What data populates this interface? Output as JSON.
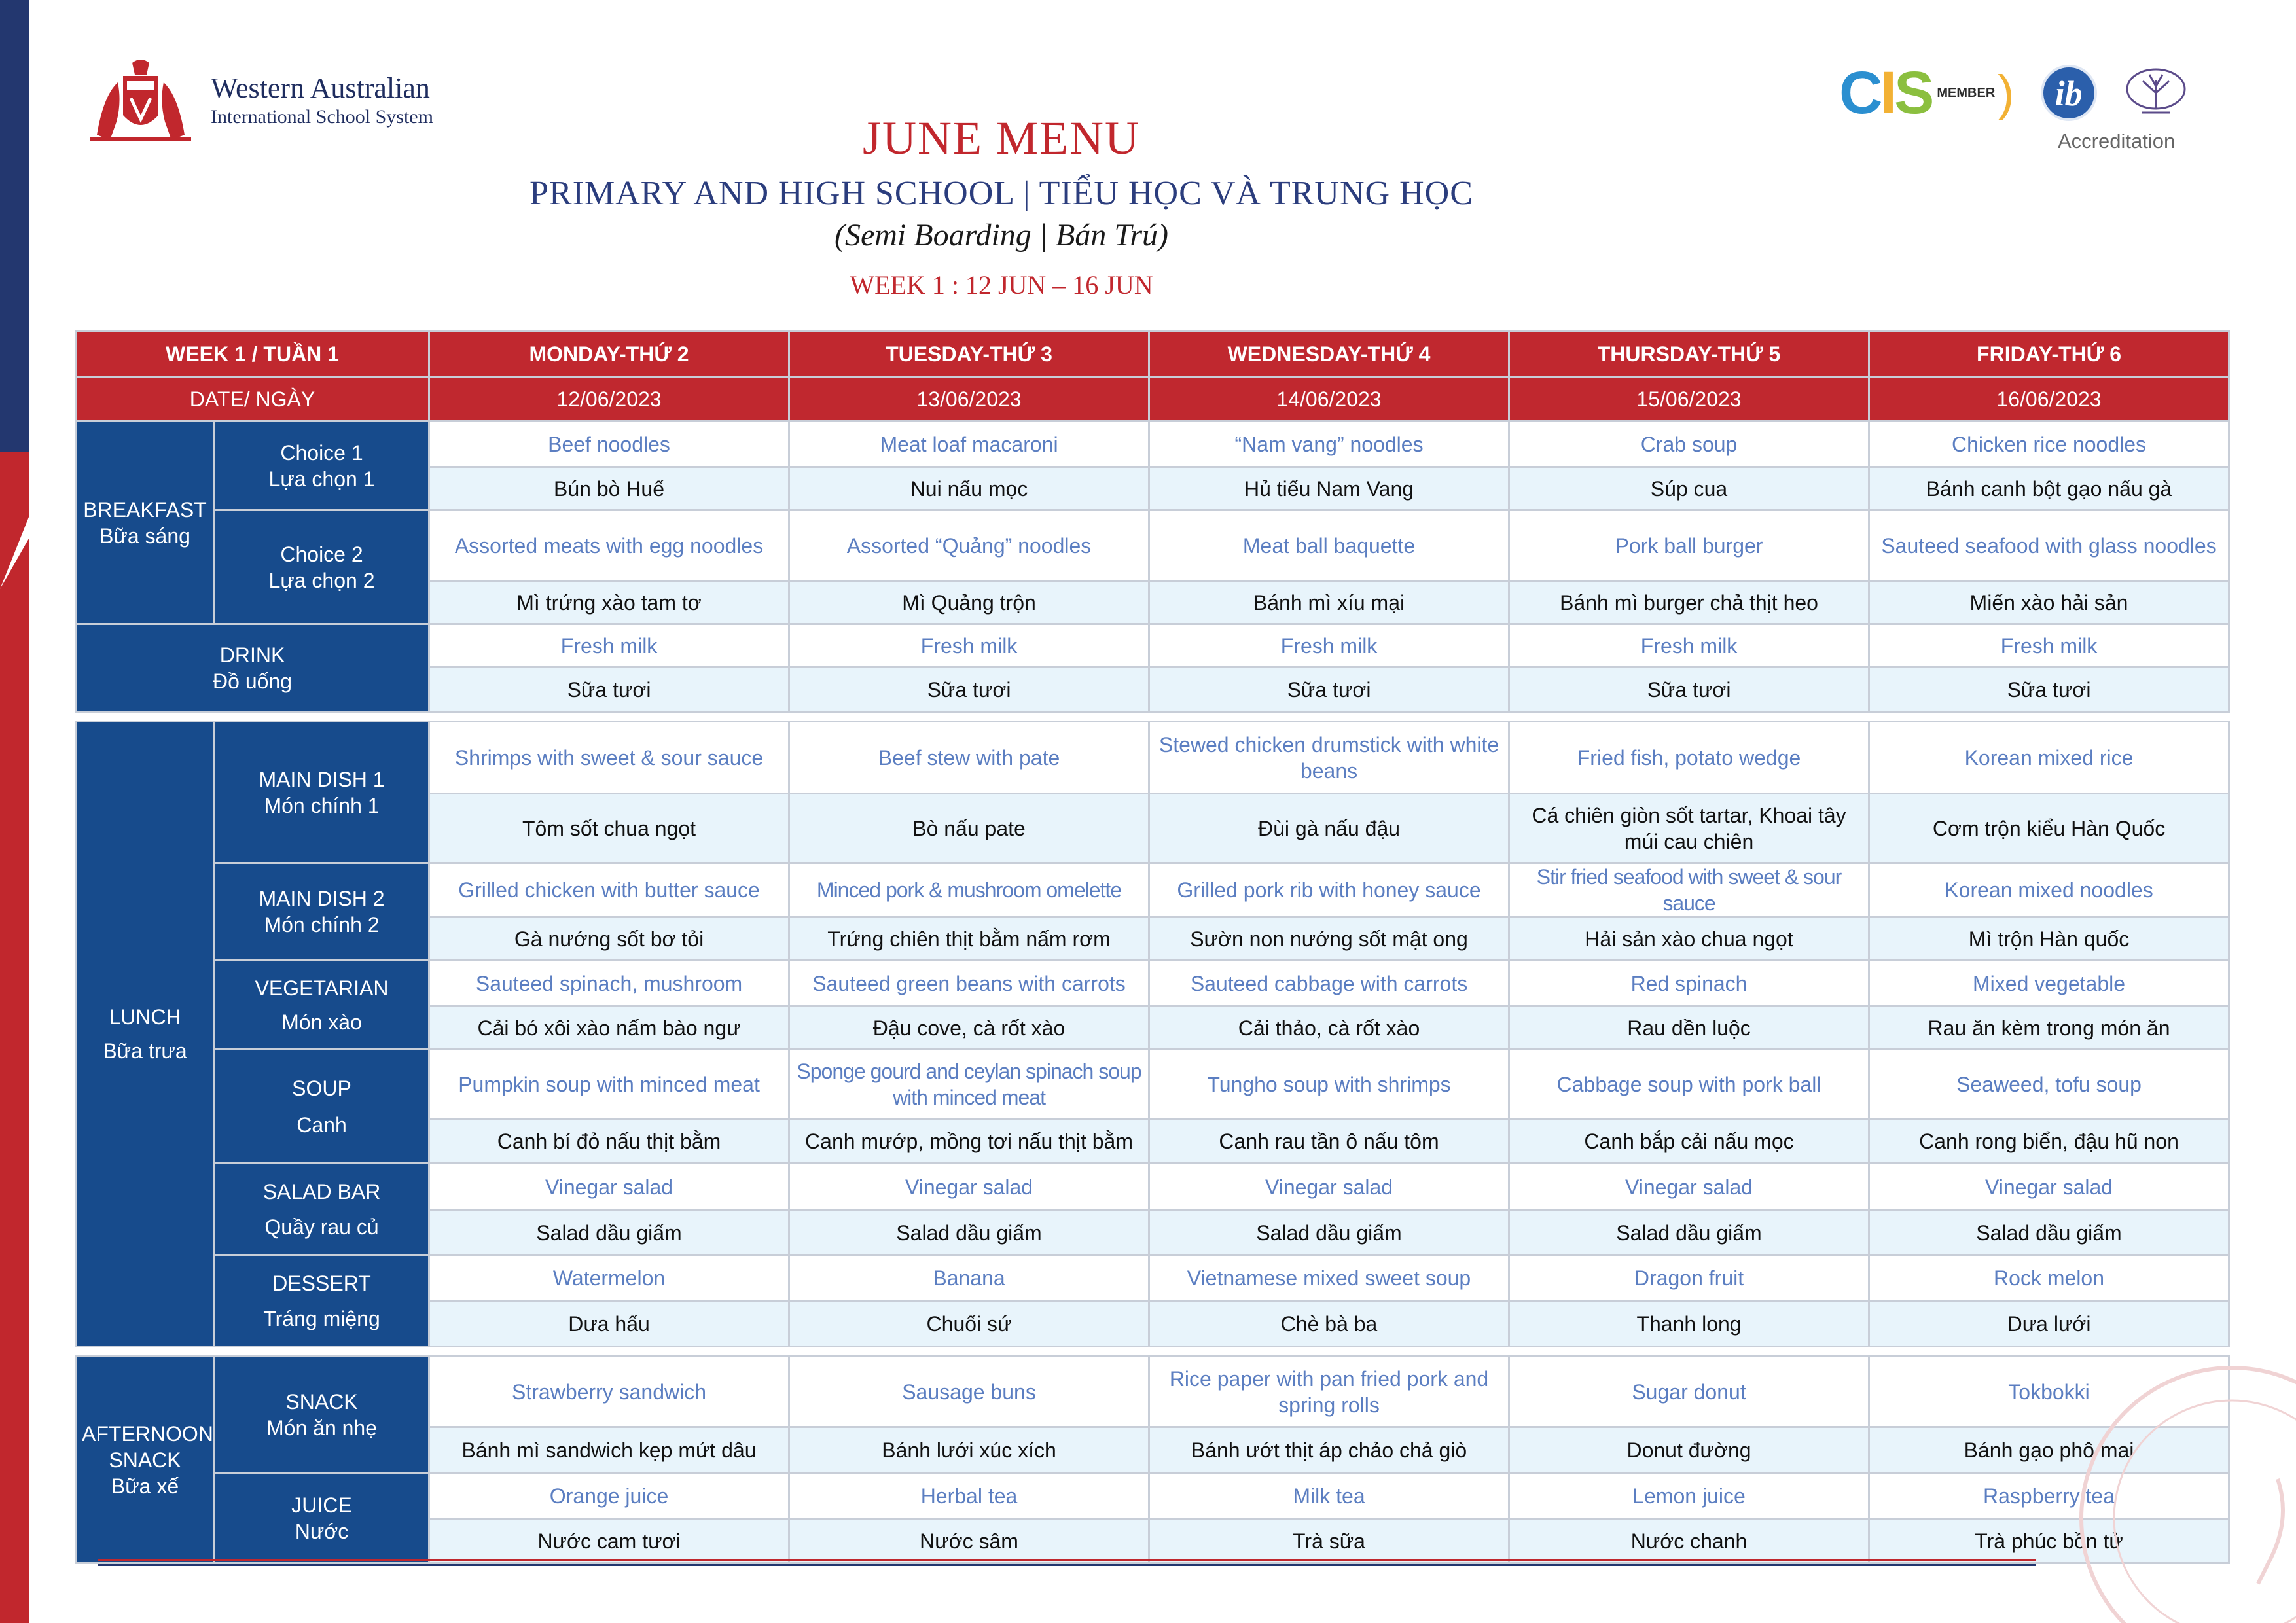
{
  "header": {
    "school_line1": "Western Australian",
    "school_line2": "International School System",
    "title": "JUNE MENU",
    "subtitle": "PRIMARY AND HIGH SCHOOL | TIỂU HỌC VÀ TRUNG HỌC",
    "subtitle2": "(Semi Boarding | Bán Trú)",
    "week_range": "WEEK 1 : 12 JUN – 16 JUN",
    "accreditation_label": "Accreditation",
    "cis_label": "MEMBER"
  },
  "table": {
    "corner": "WEEK 1 / TUẦN 1",
    "date_label": "DATE/ NGÀY",
    "days": [
      "MONDAY-THỨ 2",
      "TUESDAY-THỨ 3",
      "WEDNESDAY-THỨ 4",
      "THURSDAY-THỨ 5",
      "FRIDAY-THỨ 6"
    ],
    "dates": [
      "12/06/2023",
      "13/06/2023",
      "14/06/2023",
      "15/06/2023",
      "16/06/2023"
    ]
  },
  "categories": {
    "breakfast": {
      "en": "BREAKFAST",
      "vn": "Bữa sáng"
    },
    "drink": {
      "en": "DRINK",
      "vn": "Đồ uống"
    },
    "lunch": {
      "en": "LUNCH",
      "vn": "Bữa trưa"
    },
    "snack": {
      "en": "AFTERNOON SNACK",
      "vn": "Bữa xế"
    }
  },
  "rows": {
    "choice1": {
      "en": "Choice 1",
      "vn": "Lựa chọn 1",
      "items_en": [
        "Beef noodles",
        "Meat loaf macaroni",
        "“Nam vang” noodles",
        "Crab soup",
        "Chicken rice noodles"
      ],
      "items_vn": [
        "Bún bò Huế",
        "Nui nấu mọc",
        "Hủ tiếu Nam Vang",
        "Súp cua",
        "Bánh canh bột gạo nấu gà"
      ]
    },
    "choice2": {
      "en": "Choice 2",
      "vn": "Lựa chọn 2",
      "items_en": [
        "Assorted meats with egg noodles",
        "Assorted “Quảng” noodles",
        "Meat ball baquette",
        "Pork ball burger",
        "Sauteed seafood with glass noodles"
      ],
      "items_vn": [
        "Mì trứng xào tam tơ",
        "Mì Quảng trộn",
        "Bánh mì xíu mại",
        "Bánh mì burger chả thịt heo",
        "Miến xào hải sản"
      ]
    },
    "drink": {
      "items_en": [
        "Fresh milk",
        "Fresh milk",
        "Fresh milk",
        "Fresh milk",
        "Fresh milk"
      ],
      "items_vn": [
        "Sữa tươi",
        "Sữa tươi",
        "Sữa tươi",
        "Sữa tươi",
        "Sữa tươi"
      ]
    },
    "main1": {
      "en": "MAIN DISH 1",
      "vn": "Món chính 1",
      "items_en": [
        "Shrimps with sweet & sour sauce",
        "Beef stew with pate",
        "Stewed chicken drumstick with white beans",
        "Fried fish, potato wedge",
        "Korean mixed rice"
      ],
      "items_vn": [
        "Tôm sốt chua ngọt",
        "Bò nấu pate",
        "Đùi gà nấu đậu",
        "Cá chiên giòn sốt tartar, Khoai tây múi cau chiên",
        "Cơm trộn kiểu Hàn Quốc"
      ]
    },
    "main2": {
      "en": "MAIN DISH 2",
      "vn": "Món chính 2",
      "items_en": [
        "Grilled chicken with butter sauce",
        "Minced pork & mushroom omelette",
        "Grilled pork rib with honey sauce",
        "Stir fried seafood with sweet & sour sauce",
        "Korean mixed noodles"
      ],
      "items_vn": [
        "Gà nướng sốt bơ tỏi",
        "Trứng chiên thịt bằm nấm rơm",
        "Sườn non nướng sốt mật ong",
        "Hải sản xào chua ngọt",
        "Mì trộn Hàn quốc"
      ]
    },
    "veg": {
      "en": "VEGETARIAN",
      "vn": "Món xào",
      "items_en": [
        "Sauteed spinach, mushroom",
        "Sauteed green beans with carrots",
        "Sauteed cabbage with carrots",
        "Red spinach",
        "Mixed vegetable"
      ],
      "items_vn": [
        "Cải bó xôi xào nấm bào ngư",
        "Đậu cove, cà rốt xào",
        "Cải thảo, cà rốt xào",
        "Rau dền luộc",
        "Rau ăn kèm trong món ăn"
      ]
    },
    "soup": {
      "en": "SOUP",
      "vn": "Canh",
      "items_en": [
        "Pumpkin soup with minced meat",
        "Sponge gourd and ceylan spinach soup with minced meat",
        "Tungho soup with shrimps",
        "Cabbage soup with pork ball",
        "Seaweed, tofu soup"
      ],
      "items_vn": [
        "Canh bí đỏ nấu thịt bằm",
        "Canh mướp, mồng tơi nấu thịt bằm",
        "Canh rau tần ô nấu tôm",
        "Canh bắp cải nấu mọc",
        "Canh rong biển, đậu hũ non"
      ]
    },
    "salad": {
      "en": "SALAD BAR",
      "vn": "Quầy rau củ",
      "items_en": [
        "Vinegar salad",
        "Vinegar salad",
        "Vinegar salad",
        "Vinegar salad",
        "Vinegar salad"
      ],
      "items_vn": [
        "Salad dầu giấm",
        "Salad dầu giấm",
        "Salad dầu giấm",
        "Salad dầu giấm",
        "Salad dầu giấm"
      ]
    },
    "dessert": {
      "en": "DESSERT",
      "vn": "Tráng miệng",
      "items_en": [
        "Watermelon",
        "Banana",
        "Vietnamese mixed sweet soup",
        "Dragon fruit",
        "Rock melon"
      ],
      "items_vn": [
        "Dưa hấu",
        "Chuối sứ",
        "Chè bà ba",
        "Thanh long",
        "Dưa lưới"
      ]
    },
    "snack": {
      "en": "SNACK",
      "vn": "Món ăn nhẹ",
      "items_en": [
        "Strawberry sandwich",
        "Sausage buns",
        "Rice paper with pan fried pork and spring rolls",
        "Sugar donut",
        "Tokbokki"
      ],
      "items_vn": [
        "Bánh mì sandwich kẹp mứt dâu",
        "Bánh lưới xúc xích",
        "Bánh ướt thịt áp chảo chả giò",
        "Donut đường",
        "Bánh gạo phô mai"
      ]
    },
    "juice": {
      "en": "JUICE",
      "vn": "Nước",
      "items_en": [
        "Orange juice",
        "Herbal tea",
        "Milk tea",
        "Lemon juice",
        "Raspberry tea"
      ],
      "items_vn": [
        "Nước cam tươi",
        "Nước sâm",
        "Trà sữa",
        "Nước chanh",
        "Trà phúc bồn tử"
      ]
    }
  },
  "colors": {
    "red": "#c0282f",
    "navy": "#174b8c",
    "english_text": "#5b7ec1",
    "vn_row_bg": "#e8f4fb"
  }
}
